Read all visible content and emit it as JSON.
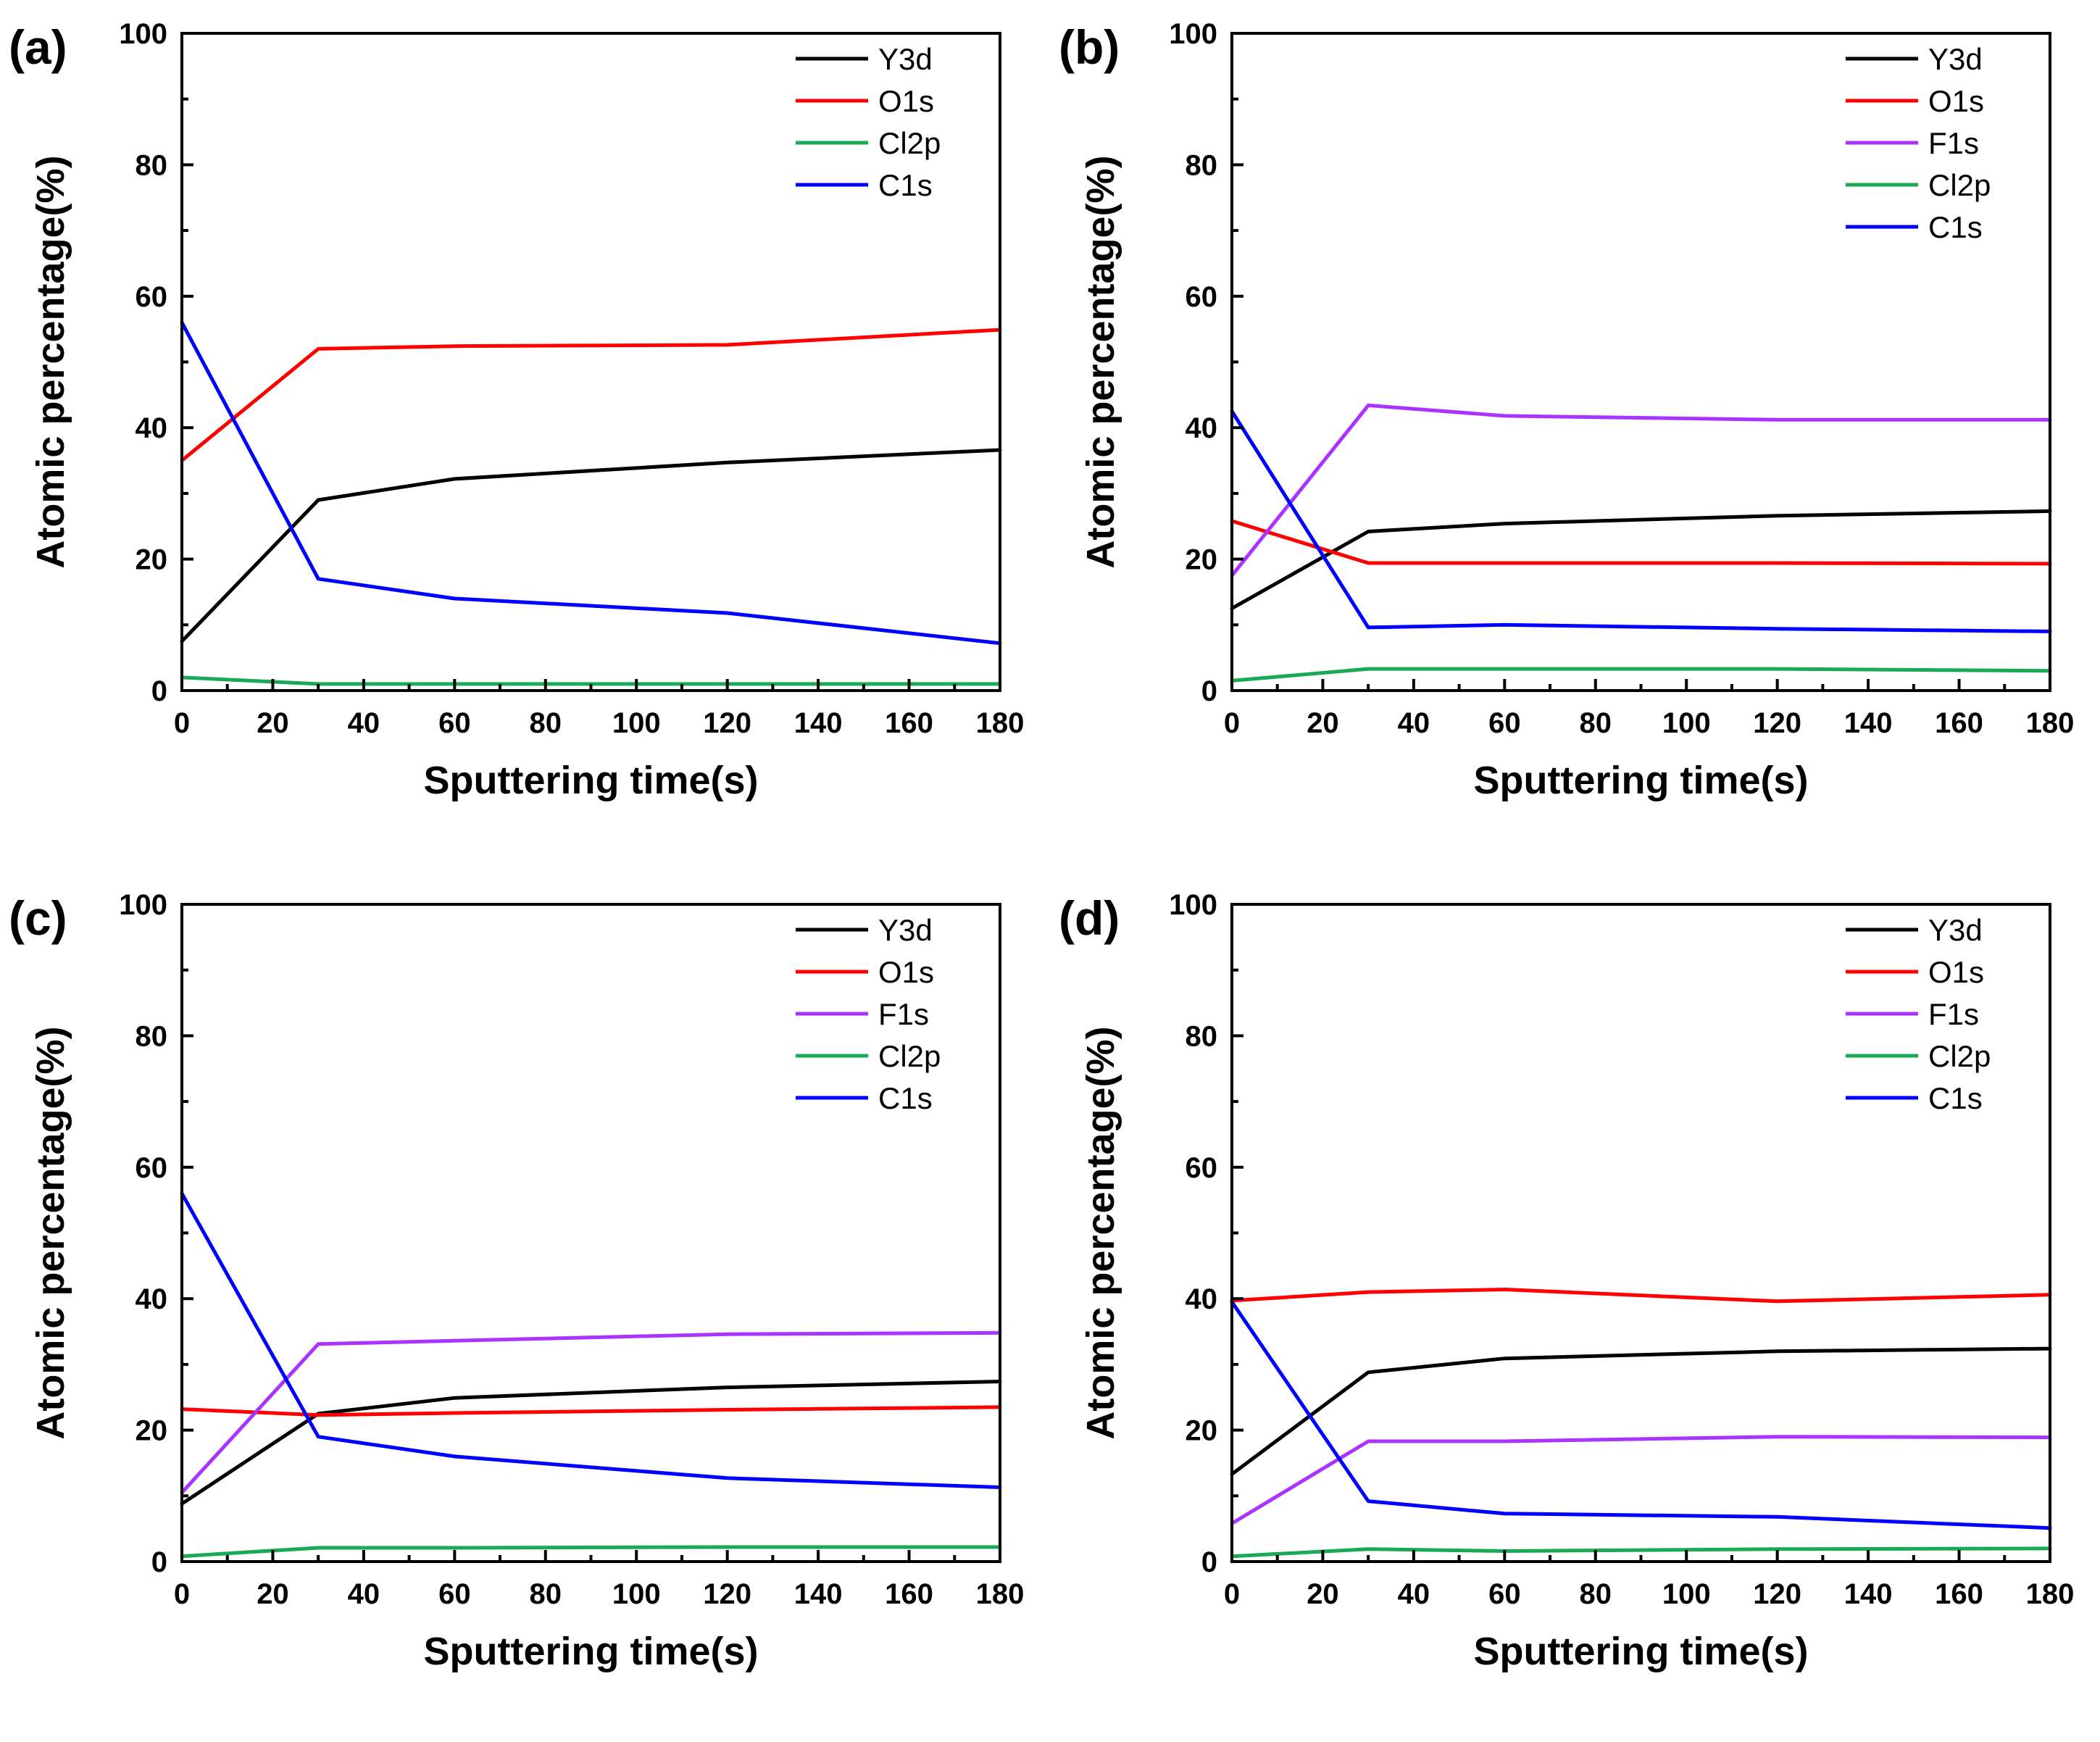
{
  "chart_data": [
    {
      "type": "line",
      "panel_label": "(a)",
      "xlabel": "Sputtering time(s)",
      "ylabel": "Atomic percentage(%)",
      "xlim": [
        0,
        180
      ],
      "ylim": [
        0,
        100
      ],
      "xticks": [
        "0",
        "20",
        "40",
        "60",
        "80",
        "100",
        "120",
        "140",
        "160",
        "180"
      ],
      "yticks": [
        "0",
        "20",
        "40",
        "60",
        "80",
        "100"
      ],
      "legend_position": "top-right",
      "x": [
        0,
        30,
        60,
        120,
        180
      ],
      "series": [
        {
          "name": "Y3d",
          "color": "#000000",
          "values": [
            7.5,
            29,
            32.2,
            34.7,
            36.6
          ]
        },
        {
          "name": "O1s",
          "color": "#ff0000",
          "values": [
            35,
            52,
            52.4,
            52.6,
            54.9
          ]
        },
        {
          "name": "Cl2p",
          "color": "#1aaa55",
          "values": [
            2,
            1,
            1,
            1,
            1
          ]
        },
        {
          "name": "C1s",
          "color": "#0000ff",
          "values": [
            56,
            17,
            14,
            11.8,
            7.2
          ]
        }
      ]
    },
    {
      "type": "line",
      "panel_label": "(b)",
      "xlabel": "Sputtering time(s)",
      "ylabel": "Atomic percentage(%)",
      "xlim": [
        0,
        180
      ],
      "ylim": [
        0,
        100
      ],
      "xticks": [
        "0",
        "20",
        "40",
        "60",
        "80",
        "100",
        "120",
        "140",
        "160",
        "180"
      ],
      "yticks": [
        "0",
        "20",
        "40",
        "60",
        "80",
        "100"
      ],
      "legend_position": "top-right",
      "x": [
        0,
        30,
        60,
        120,
        180
      ],
      "series": [
        {
          "name": "Y3d",
          "color": "#000000",
          "values": [
            12.5,
            24.2,
            25.4,
            26.6,
            27.3
          ]
        },
        {
          "name": "O1s",
          "color": "#ff0000",
          "values": [
            25.8,
            19.4,
            19.4,
            19.4,
            19.3
          ]
        },
        {
          "name": "F1s",
          "color": "#aa33ff",
          "values": [
            17.5,
            43.4,
            41.8,
            41.2,
            41.2
          ]
        },
        {
          "name": "Cl2p",
          "color": "#1aaa55",
          "values": [
            1.5,
            3.3,
            3.3,
            3.3,
            3
          ]
        },
        {
          "name": "C1s",
          "color": "#0000ff",
          "values": [
            42.5,
            9.6,
            10,
            9.4,
            9
          ]
        }
      ]
    },
    {
      "type": "line",
      "panel_label": "(c)",
      "xlabel": "Sputtering time(s)",
      "ylabel": "Atomic percentage(%)",
      "xlim": [
        0,
        180
      ],
      "ylim": [
        0,
        100
      ],
      "xticks": [
        "0",
        "20",
        "40",
        "60",
        "80",
        "100",
        "120",
        "140",
        "160",
        "180"
      ],
      "yticks": [
        "0",
        "20",
        "40",
        "60",
        "80",
        "100"
      ],
      "legend_position": "top-right",
      "x": [
        0,
        30,
        60,
        120,
        180
      ],
      "series": [
        {
          "name": "Y3d",
          "color": "#000000",
          "values": [
            8.8,
            22.5,
            24.9,
            26.5,
            27.4
          ]
        },
        {
          "name": "O1s",
          "color": "#ff0000",
          "values": [
            23.2,
            22.3,
            22.6,
            23.1,
            23.5
          ]
        },
        {
          "name": "F1s",
          "color": "#aa33ff",
          "values": [
            10.5,
            33.1,
            33.6,
            34.6,
            34.8
          ]
        },
        {
          "name": "Cl2p",
          "color": "#1aaa55",
          "values": [
            0.8,
            2.1,
            2.1,
            2.2,
            2.2
          ]
        },
        {
          "name": "C1s",
          "color": "#0000ff",
          "values": [
            56,
            19,
            16,
            12.7,
            11.3
          ]
        }
      ]
    },
    {
      "type": "line",
      "panel_label": "(d)",
      "xlabel": "Sputtering time(s)",
      "ylabel": "Atomic percentage(%)",
      "xlim": [
        0,
        180
      ],
      "ylim": [
        0,
        100
      ],
      "xticks": [
        "0",
        "20",
        "40",
        "60",
        "80",
        "100",
        "120",
        "140",
        "160",
        "180"
      ],
      "yticks": [
        "0",
        "20",
        "40",
        "60",
        "80",
        "100"
      ],
      "legend_position": "top-right",
      "x": [
        0,
        30,
        60,
        120,
        180
      ],
      "series": [
        {
          "name": "Y3d",
          "color": "#000000",
          "values": [
            13.3,
            28.8,
            30.9,
            32,
            32.4
          ]
        },
        {
          "name": "O1s",
          "color": "#ff0000",
          "values": [
            39.7,
            41,
            41.4,
            39.6,
            40.6
          ]
        },
        {
          "name": "F1s",
          "color": "#aa33ff",
          "values": [
            5.8,
            18.3,
            18.3,
            19,
            18.9
          ]
        },
        {
          "name": "Cl2p",
          "color": "#1aaa55",
          "values": [
            0.8,
            1.9,
            1.6,
            1.9,
            2
          ]
        },
        {
          "name": "C1s",
          "color": "#0000ff",
          "values": [
            39.5,
            9.2,
            7.3,
            6.8,
            5.1
          ]
        }
      ]
    }
  ]
}
